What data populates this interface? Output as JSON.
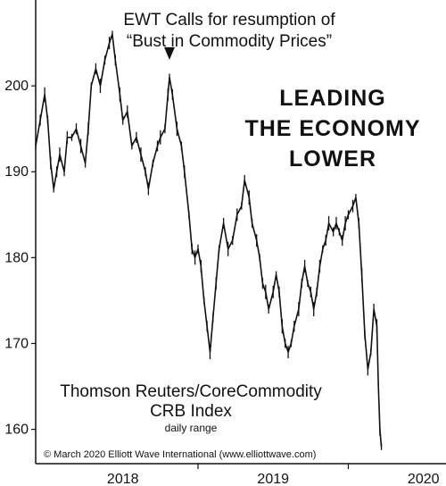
{
  "chart_data": {
    "type": "line",
    "title": "",
    "xlabel": "",
    "ylabel": "",
    "ylim": [
      156,
      210
    ],
    "xlim": [
      2017.42,
      2020.15
    ],
    "yticks": [
      160,
      170,
      180,
      190,
      200
    ],
    "xticks": [
      {
        "label": "2018",
        "value": 2018.0
      },
      {
        "label": "2019",
        "value": 2019.0
      },
      {
        "label": "2020",
        "value": 2020.0
      }
    ],
    "annotation": {
      "line1": "EWT Calls for resumption of",
      "line2": "“Bust in Commodity Prices”",
      "arrow_x": 2018.31,
      "arrow_y": 202
    },
    "headline": [
      "LEADING",
      "THE ECONOMY",
      "LOWER"
    ],
    "index_label": {
      "line1": "Thomson Reuters/CoreCommodity",
      "line2": "CRB Index",
      "line3": "daily range"
    },
    "copyright": "© March 2020 Elliott Wave International (www.elliottwave.com)",
    "series": [
      {
        "color": "#111111",
        "points": [
          [
            2017.42,
            193
          ],
          [
            2017.45,
            196
          ],
          [
            2017.48,
            199
          ],
          [
            2017.5,
            196
          ],
          [
            2017.52,
            191
          ],
          [
            2017.54,
            188
          ],
          [
            2017.56,
            190
          ],
          [
            2017.58,
            192
          ],
          [
            2017.61,
            190
          ],
          [
            2017.63,
            194
          ],
          [
            2017.66,
            194
          ],
          [
            2017.69,
            195
          ],
          [
            2017.72,
            193
          ],
          [
            2017.75,
            191
          ],
          [
            2017.77,
            195
          ],
          [
            2017.79,
            200
          ],
          [
            2017.82,
            202
          ],
          [
            2017.85,
            200
          ],
          [
            2017.88,
            203
          ],
          [
            2017.91,
            205
          ],
          [
            2017.93,
            206
          ],
          [
            2017.95,
            203
          ],
          [
            2017.98,
            199
          ],
          [
            2018.0,
            196
          ],
          [
            2018.03,
            197
          ],
          [
            2018.06,
            193
          ],
          [
            2018.09,
            194
          ],
          [
            2018.12,
            192
          ],
          [
            2018.15,
            190
          ],
          [
            2018.17,
            188
          ],
          [
            2018.2,
            191
          ],
          [
            2018.23,
            193
          ],
          [
            2018.25,
            194
          ],
          [
            2018.28,
            195
          ],
          [
            2018.3,
            199
          ],
          [
            2018.31,
            201
          ],
          [
            2018.33,
            199
          ],
          [
            2018.36,
            195
          ],
          [
            2018.39,
            193
          ],
          [
            2018.41,
            190
          ],
          [
            2018.44,
            185
          ],
          [
            2018.46,
            181
          ],
          [
            2018.48,
            180
          ],
          [
            2018.5,
            181
          ],
          [
            2018.52,
            179
          ],
          [
            2018.54,
            175
          ],
          [
            2018.56,
            172
          ],
          [
            2018.58,
            169
          ],
          [
            2018.6,
            173
          ],
          [
            2018.62,
            177
          ],
          [
            2018.64,
            181
          ],
          [
            2018.67,
            184
          ],
          [
            2018.7,
            181
          ],
          [
            2018.73,
            182
          ],
          [
            2018.76,
            185
          ],
          [
            2018.79,
            186
          ],
          [
            2018.81,
            189
          ],
          [
            2018.84,
            187
          ],
          [
            2018.86,
            184
          ],
          [
            2018.89,
            182
          ],
          [
            2018.91,
            180
          ],
          [
            2018.93,
            177
          ],
          [
            2018.95,
            176
          ],
          [
            2018.97,
            174
          ],
          [
            2019.0,
            176
          ],
          [
            2019.02,
            178
          ],
          [
            2019.04,
            176
          ],
          [
            2019.06,
            172
          ],
          [
            2019.08,
            170
          ],
          [
            2019.1,
            169
          ],
          [
            2019.12,
            170
          ],
          [
            2019.14,
            172
          ],
          [
            2019.17,
            174
          ],
          [
            2019.19,
            177
          ],
          [
            2019.21,
            179
          ],
          [
            2019.23,
            177
          ],
          [
            2019.25,
            176
          ],
          [
            2019.27,
            174
          ],
          [
            2019.29,
            176
          ],
          [
            2019.31,
            179
          ],
          [
            2019.33,
            181
          ],
          [
            2019.35,
            182
          ],
          [
            2019.37,
            184
          ],
          [
            2019.4,
            183
          ],
          [
            2019.42,
            184
          ],
          [
            2019.44,
            183
          ],
          [
            2019.46,
            182
          ],
          [
            2019.48,
            184
          ],
          [
            2019.5,
            185
          ],
          [
            2019.53,
            186
          ],
          [
            2019.55,
            187
          ],
          [
            2019.57,
            184
          ],
          [
            2019.59,
            178
          ],
          [
            2019.61,
            171
          ],
          [
            2019.63,
            167
          ],
          [
            2019.65,
            169
          ],
          [
            2019.67,
            174
          ],
          [
            2019.69,
            172
          ],
          [
            2019.7,
            165
          ],
          [
            2019.71,
            160
          ],
          [
            2019.72,
            158
          ]
        ]
      }
    ]
  }
}
